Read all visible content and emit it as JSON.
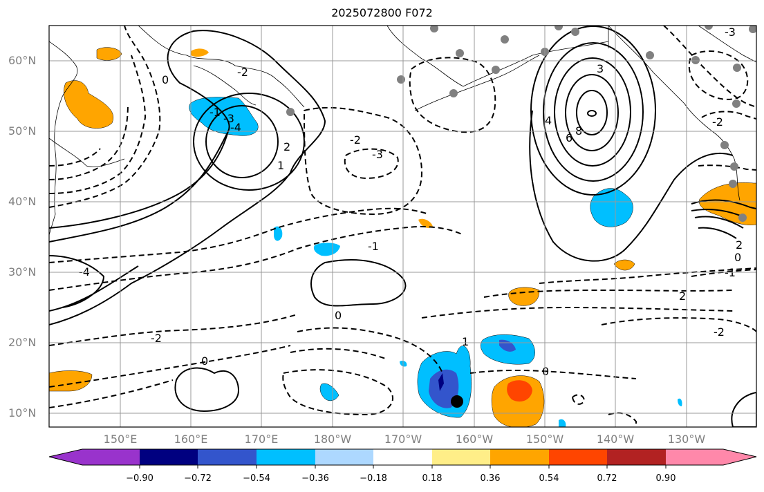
{
  "title": "2025072800 F072",
  "map": {
    "projection": "equirectangular",
    "lon_range": [
      "140°E",
      "120°W"
    ],
    "lat_range": [
      "8°N",
      "65°N"
    ],
    "lat_ticks": [
      "10°N",
      "20°N",
      "30°N",
      "40°N",
      "50°N",
      "60°N"
    ],
    "lon_ticks": [
      "150°E",
      "160°E",
      "170°E",
      "180°W",
      "170°W",
      "160°W",
      "150°W",
      "140°W",
      "130°W"
    ],
    "gridlines": true,
    "coastline_color": "#000000",
    "contour_color": "#000000",
    "contour_labels": [
      "0",
      "-1",
      "-2",
      "-3",
      "-4",
      "1",
      "2",
      "3",
      "4",
      "6",
      "8",
      "-1",
      "-2",
      "0",
      "-2",
      "-3",
      "1",
      "2",
      "0",
      "-1",
      "-2",
      "0",
      "2",
      "-2",
      "0",
      "-3",
      "-4"
    ],
    "station_marker_color": "#808080",
    "storm_marker_color": "#000000"
  },
  "colorbar": {
    "tick_labels": [
      "−0.90",
      "−0.72",
      "−0.54",
      "−0.36",
      "−0.18",
      "0.18",
      "0.36",
      "0.54",
      "0.72",
      "0.90"
    ],
    "colors": [
      "#9933cc",
      "#000080",
      "#3355cc",
      "#00bfff",
      "#add8ff",
      "#ffffff",
      "#ffee88",
      "#ffa500",
      "#ff4500",
      "#b22222",
      "#ff88aa"
    ]
  }
}
